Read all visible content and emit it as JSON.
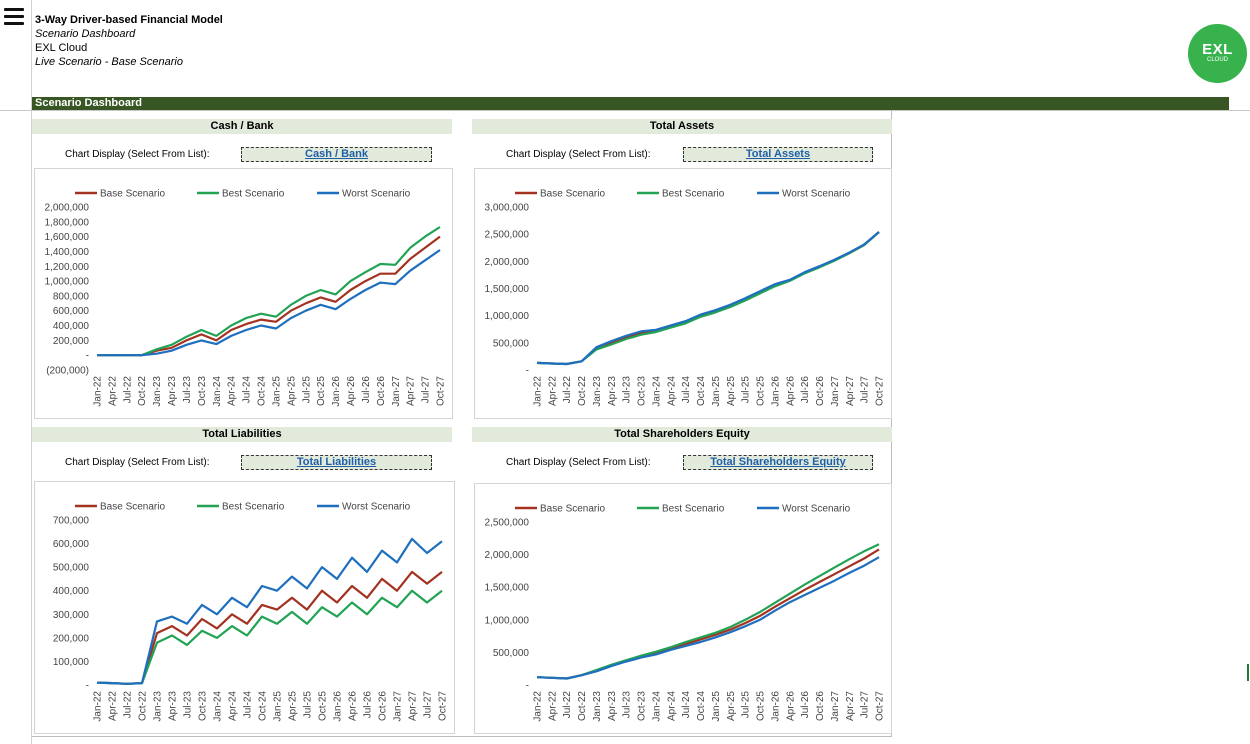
{
  "header": {
    "title": "3-Way Driver-based Financial Model",
    "subtitle": "Scenario Dashboard",
    "company": "EXL Cloud",
    "live_scenario": "Live Scenario - Base Scenario"
  },
  "logo": {
    "text": "EXL",
    "subtext": "CLOUD"
  },
  "dashboard": {
    "title": "Scenario Dashboard"
  },
  "select_label": "Chart Display (Select From List):",
  "colors": {
    "base": "#a33221",
    "best": "#22a354",
    "worst": "#1f6fbf",
    "header_bar": "#375623",
    "panel_head": "#e2eadc"
  },
  "panels": [
    {
      "heading": "Cash / Bank",
      "selection": "Cash / Bank"
    },
    {
      "heading": "Total Assets",
      "selection": "Total Assets"
    },
    {
      "heading": "Total Liabilities",
      "selection": "Total Liabilities"
    },
    {
      "heading": "Total Shareholders Equity",
      "selection": "Total Shareholders Equity"
    }
  ],
  "chart_data": [
    {
      "type": "line",
      "x": [
        "Jan-22",
        "Apr-22",
        "Jul-22",
        "Oct-22",
        "Jan-23",
        "Apr-23",
        "Jul-23",
        "Oct-23",
        "Jan-24",
        "Apr-24",
        "Jul-24",
        "Oct-24",
        "Jan-25",
        "Apr-25",
        "Jul-25",
        "Oct-25",
        "Jan-26",
        "Apr-26",
        "Jul-26",
        "Oct-26",
        "Jan-27",
        "Apr-27",
        "Jul-27",
        "Oct-27"
      ],
      "ylim": [
        -200000,
        2000000
      ],
      "yticks": [
        -200000,
        0,
        200000,
        400000,
        600000,
        800000,
        1000000,
        1200000,
        1400000,
        1600000,
        1800000,
        2000000
      ],
      "ytick_labels": [
        "(200,000)",
        "-",
        "200,000",
        "400,000",
        "600,000",
        "800,000",
        "1,000,000",
        "1,200,000",
        "1,400,000",
        "1,600,000",
        "1,800,000",
        "2,000,000"
      ],
      "legend_position": "top",
      "series": [
        {
          "name": "Base Scenario",
          "values": [
            0,
            0,
            0,
            0,
            60000,
            100000,
            200000,
            280000,
            200000,
            340000,
            420000,
            480000,
            450000,
            600000,
            700000,
            780000,
            720000,
            880000,
            1000000,
            1100000,
            1100000,
            1300000,
            1450000,
            1600000
          ]
        },
        {
          "name": "Best Scenario",
          "values": [
            0,
            0,
            0,
            0,
            80000,
            140000,
            250000,
            340000,
            260000,
            400000,
            500000,
            560000,
            520000,
            680000,
            800000,
            880000,
            820000,
            1000000,
            1120000,
            1230000,
            1220000,
            1450000,
            1600000,
            1730000
          ]
        },
        {
          "name": "Worst Scenario",
          "values": [
            0,
            0,
            0,
            0,
            20000,
            60000,
            140000,
            200000,
            150000,
            260000,
            340000,
            400000,
            360000,
            500000,
            600000,
            680000,
            620000,
            760000,
            880000,
            980000,
            960000,
            1140000,
            1280000,
            1420000
          ]
        }
      ]
    },
    {
      "type": "line",
      "x": [
        "Jan-22",
        "Apr-22",
        "Jul-22",
        "Oct-22",
        "Jan-23",
        "Apr-23",
        "Jul-23",
        "Oct-23",
        "Jan-24",
        "Apr-24",
        "Jul-24",
        "Oct-24",
        "Jan-25",
        "Apr-25",
        "Jul-25",
        "Oct-25",
        "Jan-26",
        "Apr-26",
        "Jul-26",
        "Oct-26",
        "Jan-27",
        "Apr-27",
        "Jul-27",
        "Oct-27"
      ],
      "ylim": [
        0,
        3000000
      ],
      "yticks": [
        0,
        500000,
        1000000,
        1500000,
        2000000,
        2500000,
        3000000
      ],
      "ytick_labels": [
        "-",
        "500,000",
        "1,000,000",
        "1,500,000",
        "2,000,000",
        "2,500,000",
        "3,000,000"
      ],
      "legend_position": "top",
      "series": [
        {
          "name": "Base Scenario",
          "values": [
            130000,
            120000,
            110000,
            160000,
            400000,
            500000,
            600000,
            680000,
            720000,
            800000,
            880000,
            1000000,
            1080000,
            1180000,
            1300000,
            1430000,
            1560000,
            1650000,
            1790000,
            1900000,
            2020000,
            2150000,
            2300000,
            2540000
          ]
        },
        {
          "name": "Best Scenario",
          "values": [
            130000,
            120000,
            110000,
            160000,
            380000,
            470000,
            570000,
            650000,
            700000,
            780000,
            860000,
            980000,
            1060000,
            1160000,
            1280000,
            1410000,
            1540000,
            1640000,
            1780000,
            1890000,
            2010000,
            2150000,
            2300000,
            2540000
          ]
        },
        {
          "name": "Worst Scenario",
          "values": [
            130000,
            120000,
            110000,
            160000,
            420000,
            530000,
            630000,
            710000,
            740000,
            820000,
            900000,
            1020000,
            1100000,
            1200000,
            1320000,
            1450000,
            1580000,
            1660000,
            1800000,
            1910000,
            2030000,
            2160000,
            2310000,
            2540000
          ]
        }
      ]
    },
    {
      "type": "line",
      "x": [
        "Jan-22",
        "Apr-22",
        "Jul-22",
        "Oct-22",
        "Jan-23",
        "Apr-23",
        "Jul-23",
        "Oct-23",
        "Jan-24",
        "Apr-24",
        "Jul-24",
        "Oct-24",
        "Jan-25",
        "Apr-25",
        "Jul-25",
        "Oct-25",
        "Jan-26",
        "Apr-26",
        "Jul-26",
        "Oct-26",
        "Jan-27",
        "Apr-27",
        "Jul-27",
        "Oct-27"
      ],
      "ylim": [
        0,
        700000
      ],
      "yticks": [
        0,
        100000,
        200000,
        300000,
        400000,
        500000,
        600000,
        700000
      ],
      "ytick_labels": [
        "-",
        "100,000",
        "200,000",
        "300,000",
        "400,000",
        "500,000",
        "600,000",
        "700,000"
      ],
      "legend_position": "top",
      "series": [
        {
          "name": "Base Scenario",
          "values": [
            10000,
            8000,
            5000,
            8000,
            220000,
            250000,
            210000,
            280000,
            240000,
            300000,
            260000,
            340000,
            320000,
            370000,
            320000,
            400000,
            350000,
            420000,
            370000,
            450000,
            400000,
            480000,
            430000,
            480000
          ]
        },
        {
          "name": "Best Scenario",
          "values": [
            10000,
            8000,
            5000,
            8000,
            180000,
            210000,
            170000,
            230000,
            200000,
            250000,
            210000,
            290000,
            260000,
            310000,
            260000,
            330000,
            290000,
            350000,
            300000,
            370000,
            330000,
            400000,
            350000,
            400000
          ]
        },
        {
          "name": "Worst Scenario",
          "values": [
            10000,
            8000,
            5000,
            8000,
            270000,
            290000,
            260000,
            340000,
            300000,
            370000,
            330000,
            420000,
            400000,
            460000,
            410000,
            500000,
            450000,
            540000,
            480000,
            570000,
            520000,
            620000,
            560000,
            610000
          ]
        }
      ]
    },
    {
      "type": "line",
      "x": [
        "Jan-22",
        "Apr-22",
        "Jul-22",
        "Oct-22",
        "Jan-23",
        "Apr-23",
        "Jul-23",
        "Oct-23",
        "Jan-24",
        "Apr-24",
        "Jul-24",
        "Oct-24",
        "Jan-25",
        "Apr-25",
        "Jul-25",
        "Oct-25",
        "Jan-26",
        "Apr-26",
        "Jul-26",
        "Oct-26",
        "Jan-27",
        "Apr-27",
        "Jul-27",
        "Oct-27"
      ],
      "ylim": [
        0,
        2500000
      ],
      "yticks": [
        0,
        500000,
        1000000,
        1500000,
        2000000,
        2500000
      ],
      "ytick_labels": [
        "-",
        "500,000",
        "1,000,000",
        "1,500,000",
        "2,000,000",
        "2,500,000"
      ],
      "legend_position": "top",
      "series": [
        {
          "name": "Base Scenario",
          "values": [
            120000,
            110000,
            100000,
            150000,
            220000,
            300000,
            370000,
            430000,
            490000,
            560000,
            630000,
            700000,
            770000,
            850000,
            950000,
            1060000,
            1200000,
            1330000,
            1460000,
            1580000,
            1700000,
            1820000,
            1940000,
            2080000
          ]
        },
        {
          "name": "Best Scenario",
          "values": [
            120000,
            110000,
            100000,
            150000,
            230000,
            310000,
            380000,
            450000,
            510000,
            580000,
            660000,
            730000,
            800000,
            890000,
            1000000,
            1120000,
            1260000,
            1400000,
            1540000,
            1670000,
            1800000,
            1930000,
            2050000,
            2160000
          ]
        },
        {
          "name": "Worst Scenario",
          "values": [
            120000,
            110000,
            100000,
            150000,
            210000,
            290000,
            360000,
            420000,
            470000,
            540000,
            600000,
            660000,
            730000,
            810000,
            900000,
            1000000,
            1140000,
            1270000,
            1380000,
            1490000,
            1600000,
            1720000,
            1830000,
            1960000
          ]
        }
      ]
    }
  ]
}
